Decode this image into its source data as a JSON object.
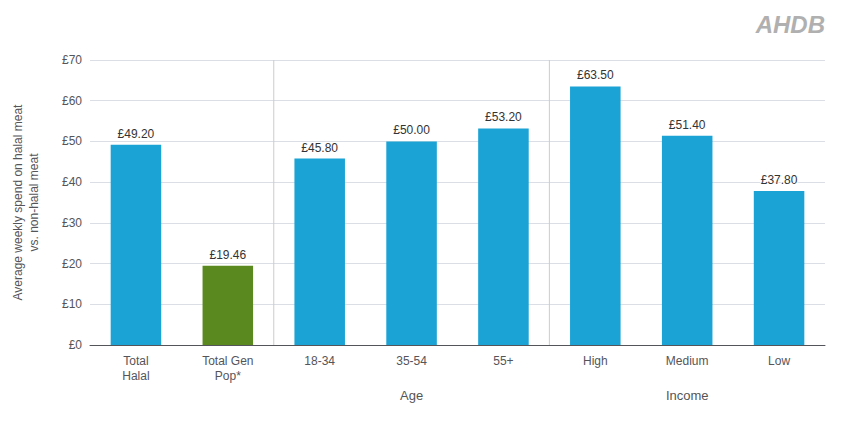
{
  "chart_data": {
    "type": "bar",
    "categories": [
      "Total\nHalal",
      "Total Gen\nPop*",
      "18-34",
      "35-54",
      "55+",
      "High",
      "Medium",
      "Low"
    ],
    "values": [
      49.2,
      19.46,
      45.8,
      50.0,
      53.2,
      63.5,
      51.4,
      37.8
    ],
    "value_labels": [
      "£49.20",
      "£19.46",
      "£45.80",
      "£50.00",
      "£53.20",
      "£63.50",
      "£51.40",
      "£37.80"
    ],
    "data_labels": true,
    "colors": [
      "#1aa3d4",
      "#5a8a1f",
      "#1aa3d4",
      "#1aa3d4",
      "#1aa3d4",
      "#1aa3d4",
      "#1aa3d4",
      "#1aa3d4"
    ],
    "ylabel": "Average weekly spend on halal meat\nvs. non-halal meat",
    "ylim": [
      0,
      70
    ],
    "yticks": [
      {
        "value": 0,
        "label": "£0"
      },
      {
        "value": 10,
        "label": "£10"
      },
      {
        "value": 20,
        "label": "£20"
      },
      {
        "value": 30,
        "label": "£30"
      },
      {
        "value": 40,
        "label": "£40"
      },
      {
        "value": 50,
        "label": "£50"
      },
      {
        "value": 60,
        "label": "£60"
      },
      {
        "value": 70,
        "label": "£70"
      }
    ],
    "grid": true,
    "annotations": [
      {
        "text": "Age",
        "categories": [
          "18-34",
          "35-54",
          "55+"
        ]
      },
      {
        "text": "Income",
        "categories": [
          "High",
          "Medium",
          "Low"
        ]
      },
      {
        "text": "AHDB",
        "color": "#b0b0b0"
      }
    ]
  }
}
